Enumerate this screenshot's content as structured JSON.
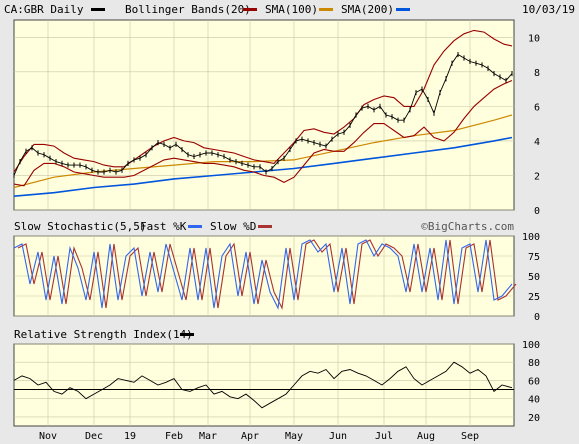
{
  "chart_data": [
    {
      "type": "line",
      "title": "CA:GBR Daily",
      "date": "10/03/19",
      "legend": {
        "price_label": "CA:GBR Daily",
        "bb_label": "Bollinger Bands(20)",
        "sma100_label": "SMA(100)",
        "sma200_label": "SMA(200)"
      },
      "ylim": [
        0,
        11
      ],
      "yticks": [
        "0",
        "2",
        "4",
        "6",
        "8",
        "10"
      ],
      "xticks": [
        "Nov",
        "Dec",
        "19",
        "Feb",
        "Mar",
        "Apr",
        "May",
        "Jun",
        "Jul",
        "Aug",
        "Sep"
      ],
      "colors": {
        "price": "#000000",
        "bb": "#990000",
        "sma100": "#cc8800",
        "sma200": "#0055dd",
        "bg": "#ffffdd"
      },
      "series": [
        {
          "name": "CA:GBR Daily",
          "x": [
            0,
            3,
            6,
            9,
            12,
            15,
            18,
            21,
            24,
            27,
            30,
            33,
            36,
            39,
            42,
            45,
            48,
            51,
            54,
            57,
            60,
            63,
            66,
            69,
            72,
            75,
            78,
            81,
            84,
            87,
            90,
            93,
            96,
            99,
            102,
            105,
            108,
            111,
            114,
            117,
            120,
            123,
            126,
            129,
            132,
            135,
            138,
            141,
            144,
            147,
            150,
            153,
            156,
            159,
            162,
            165,
            168,
            171,
            174,
            177,
            180,
            183,
            186,
            189,
            192,
            195,
            198,
            201,
            204,
            207,
            210,
            213,
            216,
            219,
            222,
            225,
            228,
            231,
            234,
            237,
            240,
            243,
            246,
            249
          ],
          "values": [
            2.0,
            2.8,
            3.4,
            3.6,
            3.3,
            3.2,
            3.0,
            2.8,
            2.7,
            2.6,
            2.6,
            2.6,
            2.5,
            2.3,
            2.2,
            2.2,
            2.3,
            2.2,
            2.3,
            2.7,
            2.9,
            3.0,
            3.2,
            3.6,
            3.9,
            3.8,
            3.6,
            3.8,
            3.5,
            3.2,
            3.1,
            3.2,
            3.3,
            3.3,
            3.2,
            3.1,
            2.9,
            2.8,
            2.7,
            2.6,
            2.5,
            2.5,
            2.2,
            2.4,
            2.8,
            3.0,
            3.5,
            4.0,
            4.1,
            4.0,
            3.9,
            3.8,
            3.7,
            4.1,
            4.4,
            4.5,
            4.9,
            5.5,
            5.9,
            6.0,
            5.8,
            6.0,
            5.5,
            5.4,
            5.2,
            5.2,
            5.8,
            6.8,
            7.0,
            6.4,
            5.6,
            6.8,
            7.6,
            8.5,
            9.0,
            8.8,
            8.6,
            8.5,
            8.4,
            8.2,
            7.9,
            7.7,
            7.5,
            7.9
          ]
        },
        {
          "name": "Bollinger Band Upper",
          "x": [
            0,
            5,
            10,
            15,
            20,
            25,
            30,
            35,
            40,
            45,
            50,
            55,
            60,
            65,
            70,
            75,
            80,
            85,
            90,
            95,
            100,
            105,
            110,
            115,
            120,
            125,
            130,
            135,
            140,
            145,
            150,
            155,
            160,
            165,
            170,
            175,
            180,
            185,
            190,
            195,
            200,
            205,
            210,
            215,
            220,
            225,
            230,
            235,
            240,
            245,
            249
          ],
          "values": [
            2.2,
            3.1,
            3.8,
            3.8,
            3.7,
            3.3,
            3.0,
            2.9,
            2.8,
            2.6,
            2.5,
            2.5,
            2.9,
            3.3,
            3.7,
            4.0,
            4.2,
            4.0,
            3.9,
            3.6,
            3.5,
            3.4,
            3.3,
            3.1,
            2.9,
            2.8,
            2.7,
            3.3,
            3.9,
            4.6,
            4.7,
            4.5,
            4.4,
            4.8,
            5.3,
            6.1,
            6.4,
            6.6,
            6.5,
            6.0,
            6.0,
            7.0,
            8.4,
            9.2,
            9.8,
            10.2,
            10.4,
            10.3,
            9.9,
            9.6,
            9.5
          ]
        },
        {
          "name": "Bollinger Band Lower",
          "x": [
            0,
            5,
            10,
            15,
            20,
            25,
            30,
            35,
            40,
            45,
            50,
            55,
            60,
            65,
            70,
            75,
            80,
            85,
            90,
            95,
            100,
            105,
            110,
            115,
            120,
            125,
            130,
            135,
            140,
            145,
            150,
            155,
            160,
            165,
            170,
            175,
            180,
            185,
            190,
            195,
            200,
            205,
            210,
            215,
            220,
            225,
            230,
            235,
            240,
            245,
            249
          ],
          "values": [
            1.5,
            1.4,
            2.3,
            2.7,
            2.7,
            2.5,
            2.2,
            2.1,
            2.0,
            1.9,
            1.9,
            1.9,
            2.0,
            2.3,
            2.6,
            2.9,
            3.0,
            2.9,
            2.8,
            2.7,
            2.7,
            2.6,
            2.5,
            2.3,
            2.2,
            2.0,
            1.9,
            1.6,
            1.9,
            2.6,
            3.3,
            3.5,
            3.4,
            3.4,
            3.9,
            4.5,
            5.0,
            5.0,
            4.6,
            4.2,
            4.3,
            4.8,
            4.2,
            4.0,
            4.5,
            5.3,
            6.0,
            6.5,
            7.0,
            7.3,
            7.5
          ]
        },
        {
          "name": "SMA(100)",
          "x": [
            0,
            20,
            40,
            60,
            80,
            100,
            120,
            140,
            160,
            180,
            200,
            220,
            240,
            249
          ],
          "values": [
            1.3,
            1.9,
            2.2,
            2.4,
            2.6,
            2.8,
            2.8,
            2.9,
            3.4,
            3.9,
            4.3,
            4.6,
            5.2,
            5.5
          ]
        },
        {
          "name": "SMA(200)",
          "x": [
            0,
            20,
            40,
            60,
            80,
            100,
            120,
            140,
            160,
            180,
            200,
            220,
            240,
            249
          ],
          "values": [
            0.8,
            1.0,
            1.3,
            1.5,
            1.8,
            2.0,
            2.2,
            2.4,
            2.7,
            3.0,
            3.3,
            3.6,
            4.0,
            4.2
          ]
        }
      ]
    },
    {
      "type": "line",
      "title": "Slow Stochastic(5,5)",
      "legend": {
        "title": "Slow Stochastic(5,5)",
        "fast_label": "Fast %K",
        "slow_label": "Slow %D"
      },
      "ylim": [
        0,
        100
      ],
      "yticks": [
        "0",
        "25",
        "50",
        "75",
        "100"
      ],
      "brand": "©BigCharts.com",
      "colors": {
        "fast": "#3366ee",
        "slow": "#aa3333"
      },
      "series": [
        {
          "name": "Fast %K",
          "x": [
            0,
            4,
            8,
            12,
            16,
            20,
            24,
            28,
            32,
            36,
            40,
            44,
            48,
            52,
            56,
            60,
            64,
            68,
            72,
            76,
            80,
            84,
            88,
            92,
            96,
            100,
            104,
            108,
            112,
            116,
            120,
            124,
            128,
            132,
            136,
            140,
            144,
            148,
            152,
            156,
            160,
            164,
            168,
            172,
            176,
            180,
            184,
            188,
            192,
            196,
            200,
            204,
            208,
            212,
            216,
            220,
            224,
            228,
            232,
            236,
            240,
            244,
            249
          ],
          "values": [
            85,
            90,
            40,
            80,
            20,
            75,
            15,
            85,
            60,
            20,
            80,
            10,
            90,
            20,
            75,
            85,
            25,
            80,
            30,
            90,
            55,
            20,
            85,
            20,
            85,
            10,
            75,
            90,
            25,
            80,
            15,
            70,
            30,
            10,
            85,
            20,
            90,
            95,
            80,
            90,
            30,
            85,
            15,
            90,
            95,
            75,
            90,
            85,
            75,
            30,
            90,
            30,
            85,
            20,
            95,
            15,
            85,
            90,
            30,
            95,
            20,
            25,
            40
          ]
        }
      ]
    },
    {
      "type": "line",
      "title": "Relative Strength Index(14)",
      "legend": {
        "title": "Relative Strength Index(14)"
      },
      "ylim": [
        10,
        100
      ],
      "yticks": [
        "20",
        "40",
        "60",
        "80",
        "100"
      ],
      "reference_line": 50,
      "series": [
        {
          "name": "Relative Strength Index(14)",
          "x": [
            0,
            4,
            8,
            12,
            16,
            20,
            24,
            28,
            32,
            36,
            40,
            44,
            48,
            52,
            56,
            60,
            64,
            68,
            72,
            76,
            80,
            84,
            88,
            92,
            96,
            100,
            104,
            108,
            112,
            116,
            120,
            124,
            128,
            132,
            136,
            140,
            144,
            148,
            152,
            156,
            160,
            164,
            168,
            172,
            176,
            180,
            184,
            188,
            192,
            196,
            200,
            204,
            208,
            212,
            216,
            220,
            224,
            228,
            232,
            236,
            240,
            244,
            249
          ],
          "values": [
            60,
            65,
            62,
            55,
            58,
            48,
            45,
            52,
            48,
            40,
            45,
            50,
            55,
            62,
            60,
            58,
            65,
            60,
            55,
            58,
            62,
            50,
            48,
            52,
            55,
            45,
            48,
            42,
            40,
            45,
            38,
            30,
            35,
            40,
            45,
            55,
            65,
            70,
            68,
            72,
            62,
            70,
            72,
            68,
            65,
            60,
            55,
            62,
            70,
            75,
            62,
            55,
            60,
            65,
            70,
            80,
            75,
            68,
            72,
            65,
            48,
            55,
            52
          ]
        }
      ]
    }
  ]
}
